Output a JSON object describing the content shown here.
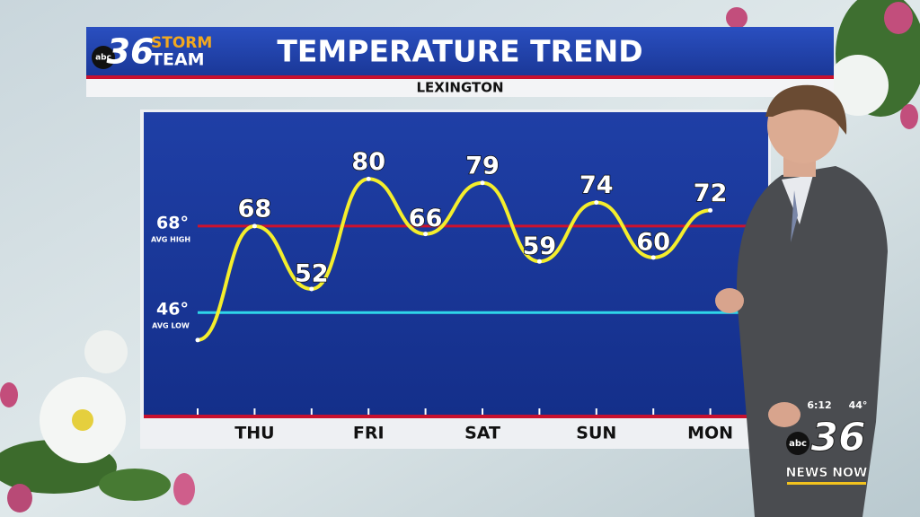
{
  "header": {
    "logo_number": "36",
    "logo_network": "abc",
    "logo_line1": "STORM",
    "logo_line2": "TEAM"
  },
  "chart_data": {
    "type": "line",
    "title": "TEMPERATURE TREND",
    "subtitle": "LEXINGTON",
    "categories": [
      null,
      "THU",
      null,
      "FRI",
      null,
      "SAT",
      null,
      "SUN",
      null,
      "MON"
    ],
    "values": [
      39,
      68,
      52,
      80,
      66,
      79,
      59,
      74,
      60,
      72
    ],
    "color": "#f4ee2c",
    "ylim": [
      20,
      97
    ],
    "reference_lines": [
      {
        "value": 68,
        "label": "68°",
        "note": "AVG HIGH",
        "color": "#d0122c"
      },
      {
        "value": 46,
        "label": "46°",
        "note": "AVG LOW",
        "color": "#2fd6ea"
      }
    ]
  },
  "bug": {
    "time": "6:12",
    "temp": "44°",
    "network": "abc",
    "number": "36",
    "tagline": "NEWS NOW"
  }
}
